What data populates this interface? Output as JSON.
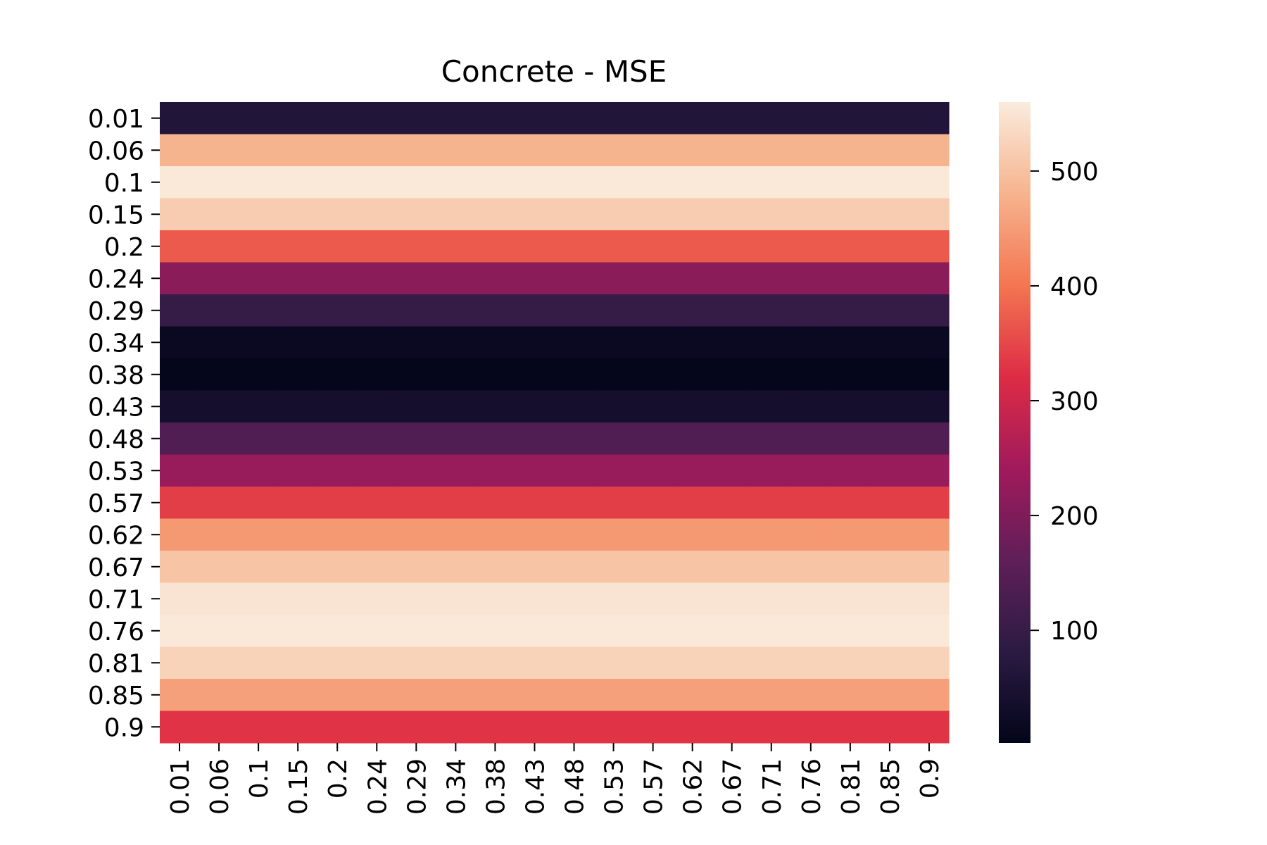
{
  "chart_data": {
    "type": "heatmap",
    "title": "Concrete - MSE",
    "xlabel": "",
    "ylabel": "",
    "x_labels": [
      "0.01",
      "0.06",
      "0.1",
      "0.15",
      "0.2",
      "0.24",
      "0.29",
      "0.34",
      "0.38",
      "0.43",
      "0.48",
      "0.53",
      "0.57",
      "0.62",
      "0.67",
      "0.71",
      "0.76",
      "0.81",
      "0.85",
      "0.9"
    ],
    "y_labels": [
      "0.01",
      "0.06",
      "0.1",
      "0.15",
      "0.2",
      "0.24",
      "0.29",
      "0.34",
      "0.38",
      "0.43",
      "0.48",
      "0.53",
      "0.57",
      "0.62",
      "0.67",
      "0.71",
      "0.76",
      "0.81",
      "0.85",
      "0.9"
    ],
    "row_values": [
      62,
      480,
      555,
      515,
      370,
      215,
      95,
      18,
      5,
      38,
      140,
      230,
      340,
      445,
      505,
      550,
      555,
      525,
      455,
      330
    ],
    "colorbar": {
      "range": [
        2,
        560
      ],
      "ticks": [
        100,
        200,
        300,
        400,
        500
      ],
      "tick_labels": [
        "100",
        "200",
        "300",
        "400",
        "500"
      ]
    },
    "colormap": {
      "name": "rocket",
      "stops": [
        "#03051a",
        "#2b1b43",
        "#5f1f59",
        "#a11a5b",
        "#dd2c45",
        "#f37651",
        "#f6b48e",
        "#faebdd"
      ]
    },
    "grid": false,
    "legend": "colorbar-right"
  }
}
